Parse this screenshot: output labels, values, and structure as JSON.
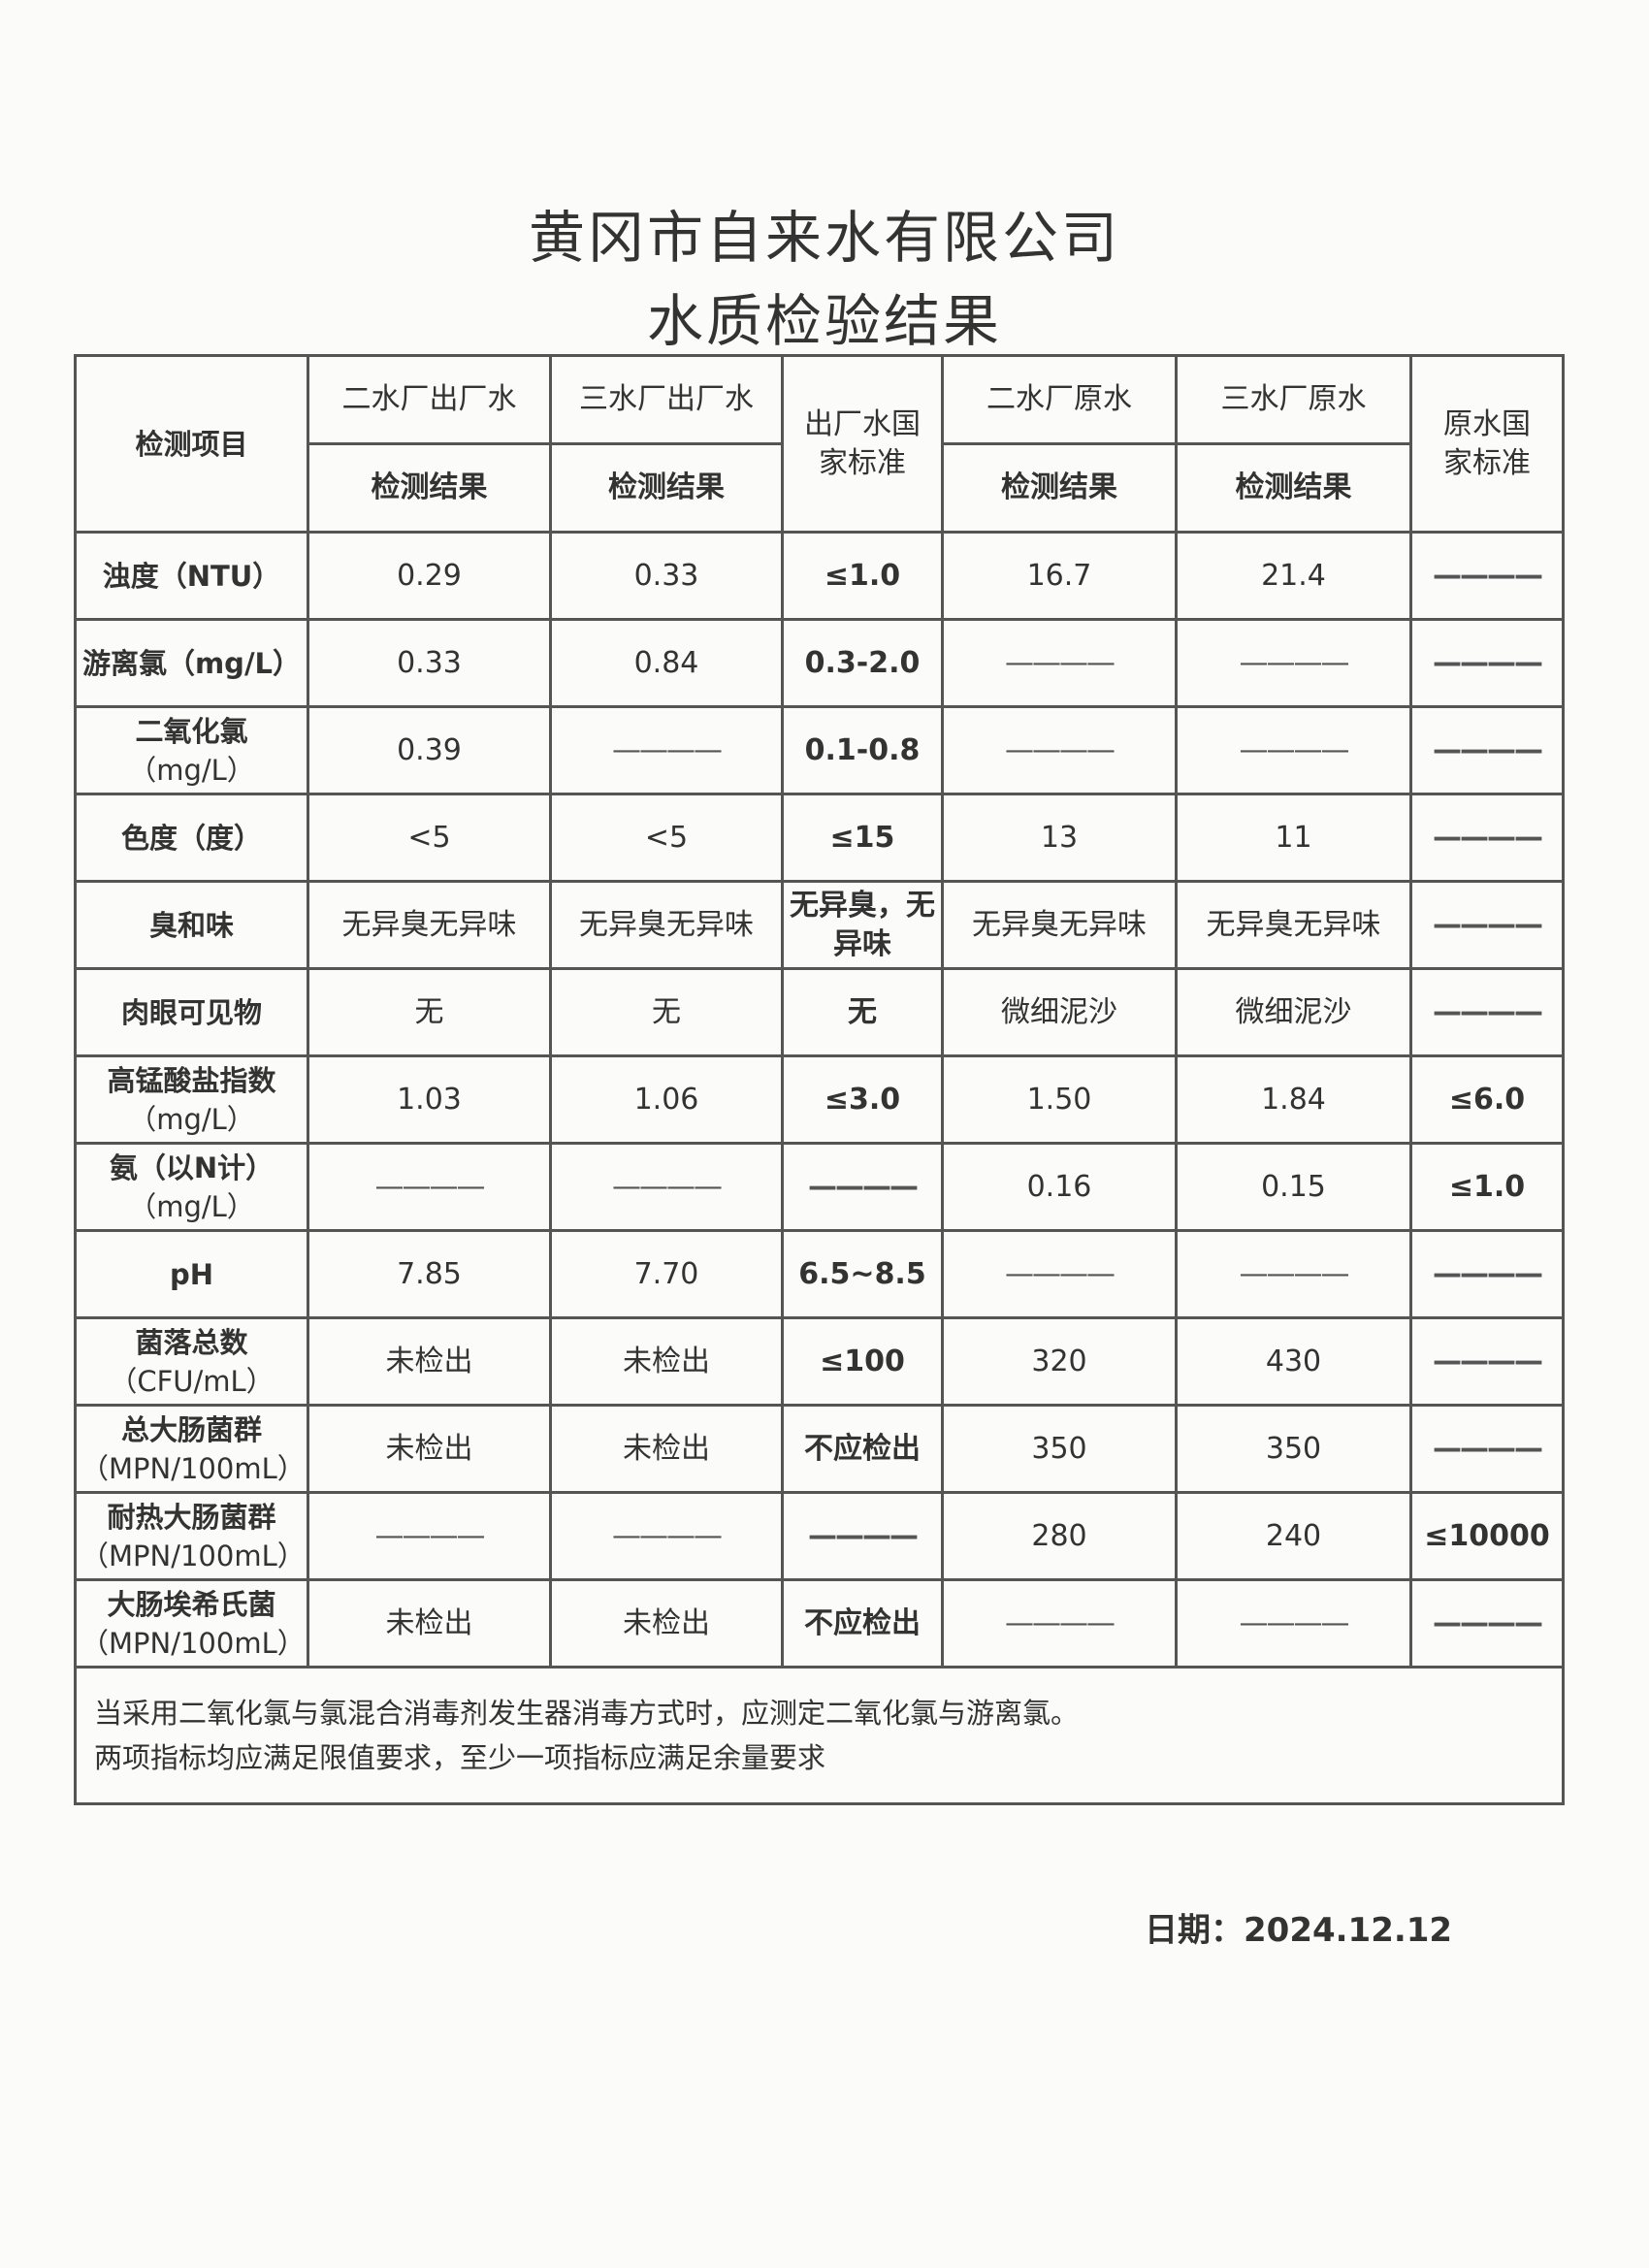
{
  "title": {
    "line1": "黄冈市自来水有限公司",
    "line2": "水质检验结果"
  },
  "table": {
    "item_header": "检测项目",
    "columns": [
      {
        "name": "二水厂出厂水",
        "sub": "检测结果"
      },
      {
        "name": "三水厂出厂水",
        "sub": "检测结果"
      },
      {
        "name": "出厂水国家标准"
      },
      {
        "name": "二水厂原水",
        "sub": "检测结果"
      },
      {
        "name": "三水厂原水",
        "sub": "检测结果"
      },
      {
        "name": "原水国家标准"
      }
    ],
    "rows": [
      {
        "item": [
          "浊度（NTU）"
        ],
        "values": [
          "0.29",
          "0.33",
          "≤1.0",
          "16.7",
          "21.4",
          "————"
        ]
      },
      {
        "item": [
          "游离氯（mg/L）"
        ],
        "values": [
          "0.33",
          "0.84",
          "0.3-2.0",
          "————",
          "————",
          "————"
        ]
      },
      {
        "item": [
          "二氧化氯",
          "（mg/L）"
        ],
        "values": [
          "0.39",
          "————",
          "0.1-0.8",
          "————",
          "————",
          "————"
        ]
      },
      {
        "item": [
          "色度（度）"
        ],
        "values": [
          "<5",
          "<5",
          "≤15",
          "13",
          "11",
          "————"
        ]
      },
      {
        "item": [
          "臭和味"
        ],
        "values": [
          "无异臭无异味",
          "无异臭无异味",
          "无异臭，无异味",
          "无异臭无异味",
          "无异臭无异味",
          "————"
        ]
      },
      {
        "item": [
          "肉眼可见物"
        ],
        "values": [
          "无",
          "无",
          "无",
          "微细泥沙",
          "微细泥沙",
          "————"
        ]
      },
      {
        "item": [
          "高锰酸盐指数",
          "（mg/L）"
        ],
        "values": [
          "1.03",
          "1.06",
          "≤3.0",
          "1.50",
          "1.84",
          "≤6.0"
        ]
      },
      {
        "item": [
          "氨（以N计）",
          "（mg/L）"
        ],
        "values": [
          "————",
          "————",
          "————",
          "0.16",
          "0.15",
          "≤1.0"
        ]
      },
      {
        "item": [
          "pH"
        ],
        "values": [
          "7.85",
          "7.70",
          "6.5~8.5",
          "————",
          "————",
          "————"
        ]
      },
      {
        "item": [
          "菌落总数",
          "（CFU/mL）"
        ],
        "values": [
          "未检出",
          "未检出",
          "≤100",
          "320",
          "430",
          "————"
        ]
      },
      {
        "item": [
          "总大肠菌群",
          "（MPN/100mL）"
        ],
        "values": [
          "未检出",
          "未检出",
          "不应检出",
          "350",
          "350",
          "————"
        ]
      },
      {
        "item": [
          "耐热大肠菌群",
          "（MPN/100mL）"
        ],
        "values": [
          "————",
          "————",
          "————",
          "280",
          "240",
          "≤10000"
        ]
      },
      {
        "item": [
          "大肠埃希氏菌",
          "（MPN/100mL）"
        ],
        "values": [
          "未检出",
          "未检出",
          "不应检出",
          "————",
          "————",
          "————"
        ]
      }
    ],
    "note": [
      "当采用二氧化氯与氯混合消毒剂发生器消毒方式时，应测定二氧化氯与游离氯。",
      "两项指标均应满足限值要求，至少一项指标应满足余量要求"
    ]
  },
  "date": "日期：2024.12.12"
}
